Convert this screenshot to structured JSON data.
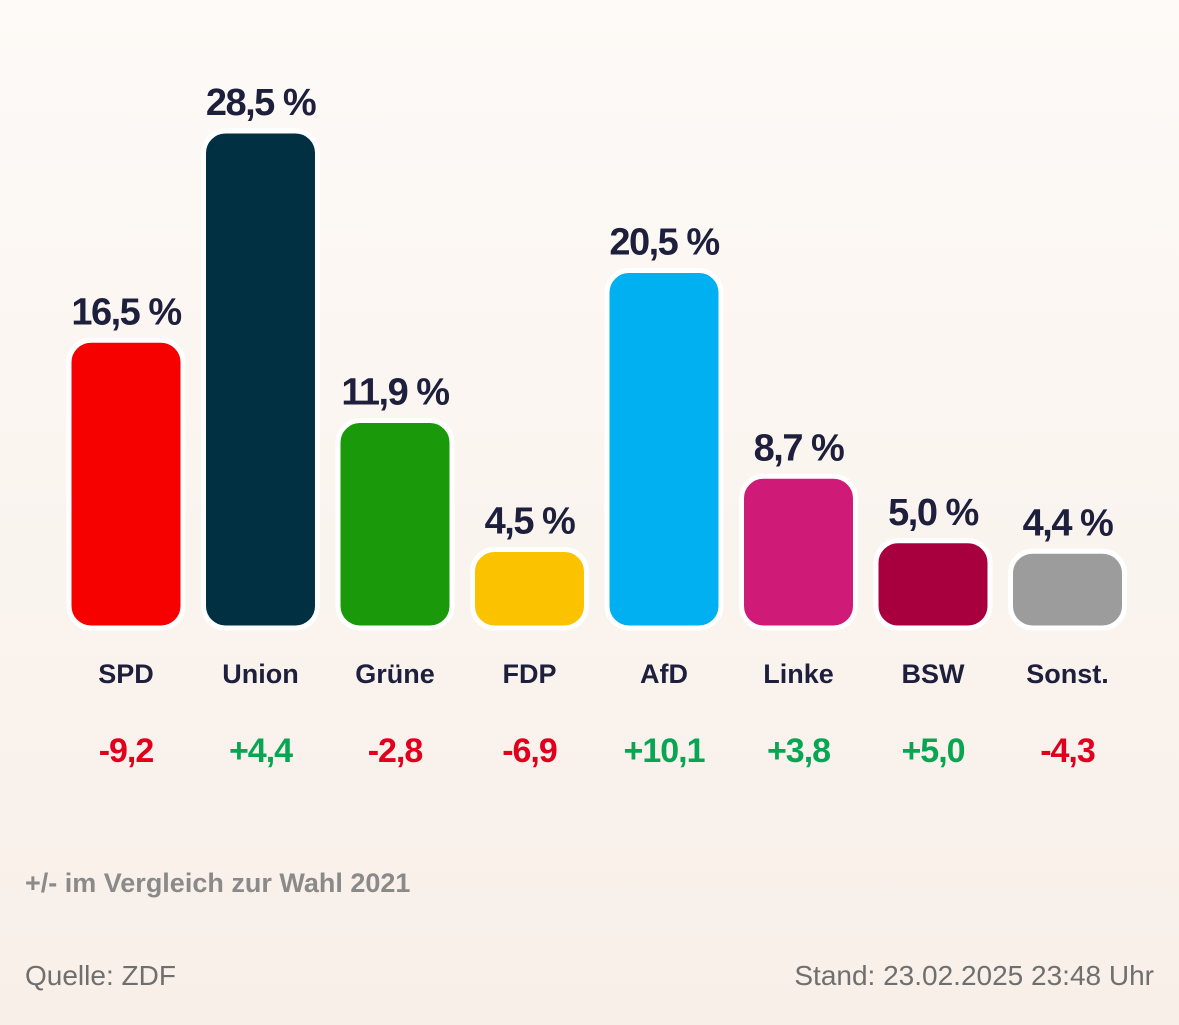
{
  "chart_data": {
    "type": "bar",
    "categories": [
      "SPD",
      "Union",
      "Grüne",
      "FDP",
      "AfD",
      "Linke",
      "BSW",
      "Sonst."
    ],
    "values": [
      16.5,
      28.5,
      11.9,
      4.5,
      20.5,
      8.7,
      5.0,
      4.4
    ],
    "value_labels": [
      "16,5 %",
      "28,5 %",
      "11,9 %",
      "4,5 %",
      "20,5 %",
      "8,7 %",
      "5,0 %",
      "4,4 %"
    ],
    "changes": [
      -9.2,
      4.4,
      -2.8,
      -6.9,
      10.1,
      3.8,
      5.0,
      -4.3
    ],
    "change_labels": [
      "-9,2",
      "+4,4",
      "-2,8",
      "-6,9",
      "+10,1",
      "+3,8",
      "+5,0",
      "-4,3"
    ],
    "colors": [
      "#f70000",
      "#003042",
      "#1a9a0a",
      "#fbc200",
      "#00b0f0",
      "#d01a78",
      "#a8003e",
      "#9c9c9c"
    ],
    "change_colors": {
      "positive": "#08a652",
      "negative": "#e0001d"
    },
    "ylim": [
      0,
      28.5
    ],
    "grid": false,
    "title": "",
    "xlabel": "",
    "ylabel": ""
  },
  "note": "+/- im Vergleich zur Wahl 2021",
  "source": "Quelle: ZDF",
  "stand": "Stand: 23.02.2025 23:48 Uhr"
}
